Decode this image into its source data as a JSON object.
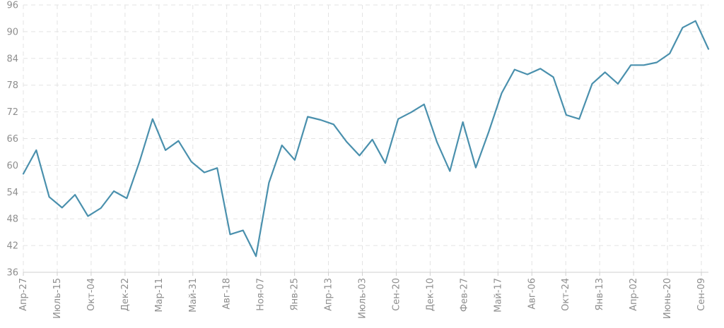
{
  "chart_data": {
    "type": "line",
    "title": "",
    "xlabel": "",
    "ylabel": "",
    "ylim": [
      36,
      96
    ],
    "y_ticks": [
      36,
      42,
      48,
      54,
      60,
      66,
      72,
      78,
      84,
      90,
      96
    ],
    "grid": true,
    "x_tick_labels": [
      "Апр-27",
      "Июль-15",
      "Окт-04",
      "Дек-22",
      "Мар-11",
      "Май-31",
      "Авг-18",
      "Ноя-07",
      "Янв-25",
      "Апр-13",
      "Июль-03",
      "Сен-20",
      "Дек-10",
      "Фев-27",
      "Май-17",
      "Авг-06",
      "Окт-24",
      "Янв-13",
      "Апр-02",
      "Июнь-20",
      "Сен-09"
    ],
    "series": [
      {
        "color": "#4a90ad",
        "values": [
          58.1,
          63.4,
          52.9,
          50.5,
          53.4,
          48.6,
          50.4,
          54.2,
          52.6,
          60.9,
          70.4,
          63.4,
          65.5,
          60.8,
          58.4,
          59.4,
          44.5,
          45.4,
          39.6,
          56.1,
          64.5,
          61.2,
          70.9,
          70.2,
          69.2,
          65.3,
          62.2,
          65.8,
          60.5,
          70.4,
          71.9,
          73.7,
          65.2,
          58.7,
          69.7,
          59.5,
          67.5,
          76.2,
          81.5,
          80.4,
          81.7,
          79.8,
          71.3,
          70.4,
          78.3,
          80.9,
          78.3,
          82.5,
          82.5,
          83.1,
          85.1,
          90.9,
          92.4,
          86.1
        ]
      }
    ]
  }
}
